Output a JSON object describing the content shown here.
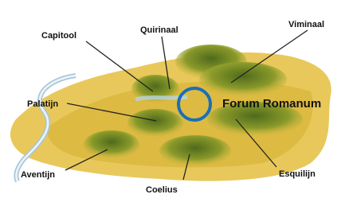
{
  "hills": [
    {
      "label": "Capitool"
    },
    {
      "label": "Quirinaal"
    },
    {
      "label": "Viminaal"
    },
    {
      "label": "Palatijn"
    },
    {
      "label": "Aventijn"
    },
    {
      "label": "Coelius"
    },
    {
      "label": "Esquilijn"
    }
  ],
  "forum": {
    "label": "Forum Romanum"
  }
}
